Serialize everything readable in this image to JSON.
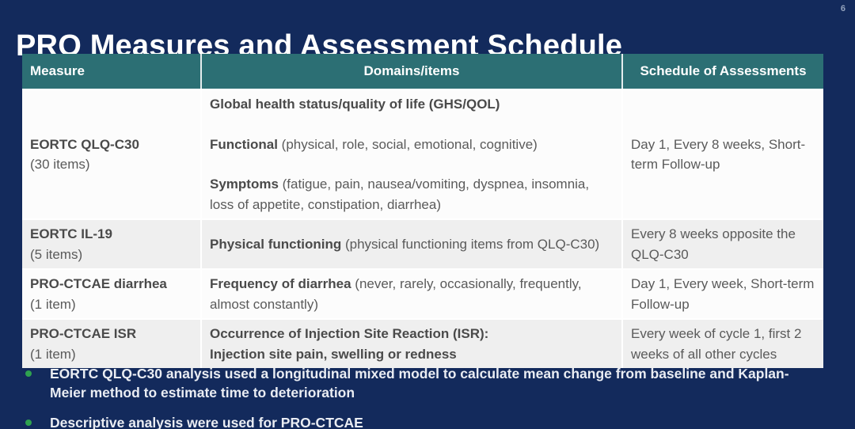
{
  "slide": {
    "page_number": "6",
    "title": "PRO Measures and Assessment Schedule"
  },
  "colors": {
    "background_navy": "#132A5C",
    "header_teal": "#2C6F74",
    "row_white": "#FCFCFC",
    "row_gray": "#EFEFEF",
    "body_text_gray": "#5A5A5A",
    "bullet_green": "#2FA24F",
    "title_white": "#FFFFFF"
  },
  "table": {
    "headers": [
      "Measure",
      "Domains/items",
      "Schedule of Assessments"
    ],
    "rows": [
      {
        "measure": "EORTC QLQ-C30",
        "measure_sub": "(30 items)",
        "domains": [
          {
            "bold": "Global health status/quality of life (GHS/QOL)",
            "rest": ""
          },
          {
            "bold": "Functional",
            "rest": " (physical, role, social, emotional, cognitive)"
          },
          {
            "bold": "Symptoms",
            "rest": " (fatigue, pain, nausea/vomiting, dyspnea, insomnia, loss of appetite, constipation, diarrhea)"
          }
        ],
        "schedule": "Day 1, Every 8 weeks, Short-term Follow-up"
      },
      {
        "measure": "EORTC IL-19",
        "measure_sub": "(5 items)",
        "domains": [
          {
            "bold": "Physical functioning",
            "rest": " (physical functioning items from QLQ-C30)"
          }
        ],
        "schedule": "Every 8 weeks opposite the QLQ-C30"
      },
      {
        "measure": "PRO-CTCAE diarrhea",
        "measure_sub": "(1 item)",
        "domains": [
          {
            "bold": "Frequency of diarrhea",
            "rest": " (never, rarely, occasionally, frequently, almost constantly)"
          }
        ],
        "schedule": "Day 1, Every week, Short-term Follow-up"
      },
      {
        "measure": "PRO-CTCAE ISR",
        "measure_sub": "(1 item)",
        "domains": [
          {
            "bold": "Occurrence of Injection Site Reaction (ISR):",
            "rest": ""
          },
          {
            "bold": "Injection site pain, swelling or redness",
            "rest": ""
          }
        ],
        "schedule": "Every week of cycle 1, first 2 weeks of all other cycles"
      }
    ]
  },
  "bullets": [
    {
      "text": "EORTC QLQ-C30 analysis used a longitudinal mixed model to calculate mean change from baseline and Kaplan-Meier method to estimate time to deterioration"
    },
    {
      "text": "Descriptive analysis were used for PRO-CTCAE"
    }
  ]
}
